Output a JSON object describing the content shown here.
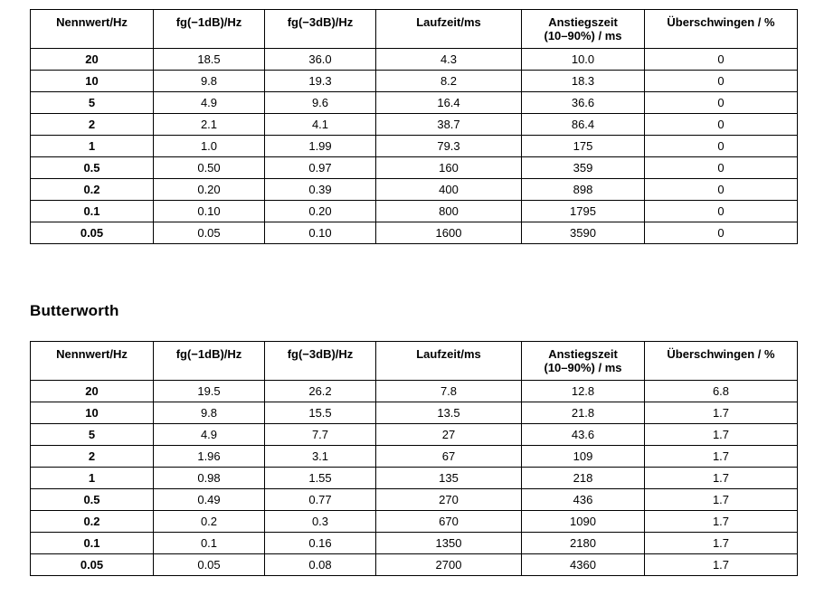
{
  "page": {
    "background": "#ffffff",
    "text_color": "#000000",
    "border_color": "#000000"
  },
  "columns": [
    {
      "lines": [
        "Nennwert/Hz"
      ]
    },
    {
      "lines": [
        "fg(−1dB)/Hz"
      ]
    },
    {
      "lines": [
        "fg(−3dB)/Hz"
      ]
    },
    {
      "lines": [
        "Laufzeit/ms"
      ]
    },
    {
      "lines": [
        "Anstiegszeit",
        "(10–90%) / ms"
      ]
    },
    {
      "lines": [
        "Überschwingen / %"
      ]
    }
  ],
  "tables": [
    {
      "rows": [
        [
          "20",
          "18.5",
          "36.0",
          "4.3",
          "10.0",
          "0"
        ],
        [
          "10",
          "9.8",
          "19.3",
          "8.2",
          "18.3",
          "0"
        ],
        [
          "5",
          "4.9",
          "9.6",
          "16.4",
          "36.6",
          "0"
        ],
        [
          "2",
          "2.1",
          "4.1",
          "38.7",
          "86.4",
          "0"
        ],
        [
          "1",
          "1.0",
          "1.99",
          "79.3",
          "175",
          "0"
        ],
        [
          "0.5",
          "0.50",
          "0.97",
          "160",
          "359",
          "0"
        ],
        [
          "0.2",
          "0.20",
          "0.39",
          "400",
          "898",
          "0"
        ],
        [
          "0.1",
          "0.10",
          "0.20",
          "800",
          "1795",
          "0"
        ],
        [
          "0.05",
          "0.05",
          "0.10",
          "1600",
          "3590",
          "0"
        ]
      ]
    },
    {
      "heading": "Butterworth",
      "rows": [
        [
          "20",
          "19.5",
          "26.2",
          "7.8",
          "12.8",
          "6.8"
        ],
        [
          "10",
          "9.8",
          "15.5",
          "13.5",
          "21.8",
          "1.7"
        ],
        [
          "5",
          "4.9",
          "7.7",
          "27",
          "43.6",
          "1.7"
        ],
        [
          "2",
          "1.96",
          "3.1",
          "67",
          "109",
          "1.7"
        ],
        [
          "1",
          "0.98",
          "1.55",
          "135",
          "218",
          "1.7"
        ],
        [
          "0.5",
          "0.49",
          "0.77",
          "270",
          "436",
          "1.7"
        ],
        [
          "0.2",
          "0.2",
          "0.3",
          "670",
          "1090",
          "1.7"
        ],
        [
          "0.1",
          "0.1",
          "0.16",
          "1350",
          "2180",
          "1.7"
        ],
        [
          "0.05",
          "0.05",
          "0.08",
          "2700",
          "4360",
          "1.7"
        ]
      ]
    }
  ]
}
